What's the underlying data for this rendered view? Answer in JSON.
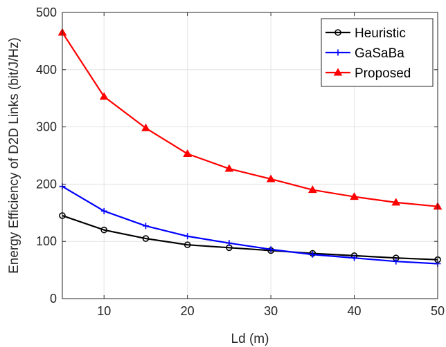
{
  "chart_data": {
    "type": "line",
    "xlabel": "Ld (m)",
    "ylabel": "Energy Efficiency of D2D Links (bit/J/Hz)",
    "x": [
      5,
      10,
      15,
      20,
      25,
      30,
      35,
      40,
      45,
      50
    ],
    "xlim": [
      5,
      50
    ],
    "ylim": [
      0,
      500
    ],
    "xticks": [
      10,
      20,
      30,
      40,
      50
    ],
    "yticks": [
      0,
      100,
      200,
      300,
      400,
      500
    ],
    "grid": true,
    "legend_position": "top-right",
    "series": [
      {
        "name": "Heuristic",
        "color": "#000000",
        "marker": "circle",
        "values": [
          145,
          120,
          105,
          94,
          89,
          84,
          79,
          75,
          71,
          68
        ]
      },
      {
        "name": "GaSaBa",
        "color": "#0000ff",
        "marker": "plus",
        "values": [
          196,
          153,
          127,
          109,
          97,
          86,
          77,
          71,
          65,
          61
        ]
      },
      {
        "name": "Proposed",
        "color": "#ff0000",
        "marker": "triangle",
        "values": [
          465,
          353,
          298,
          253,
          227,
          209,
          190,
          178,
          168,
          161
        ]
      }
    ]
  }
}
